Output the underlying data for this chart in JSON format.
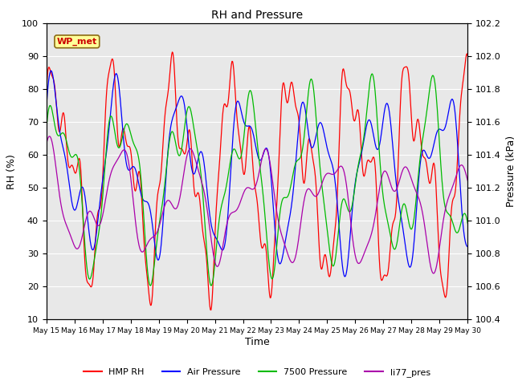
{
  "title": "RH and Pressure",
  "xlabel": "Time",
  "ylabel_left": "RH (%)",
  "ylabel_right": "Pressure (kPa)",
  "ylim_left": [
    10,
    100
  ],
  "ylim_right": [
    100.4,
    102.2
  ],
  "annotation_text": "WP_met",
  "annotation_box_color": "#FFFF99",
  "annotation_border_color": "#8B6914",
  "annotation_text_color": "#CC0000",
  "x_tick_labels": [
    "May 15",
    "May 16",
    "May 17",
    "May 18",
    "May 19",
    "May 20",
    "May 21",
    "May 22",
    "May 23",
    "May 24",
    "May 25",
    "May 26",
    "May 27",
    "May 28",
    "May 29",
    "May 30"
  ],
  "background_color": "#E8E8E8",
  "figure_bg": "#FFFFFF",
  "line_colors": {
    "HMP RH": "#FF0000",
    "Air Pressure": "#0000FF",
    "7500 Pressure": "#00BB00",
    "li77_pres": "#AA00AA"
  },
  "legend_labels": [
    "HMP RH",
    "Air Pressure",
    "7500 Pressure",
    "li77_pres"
  ]
}
